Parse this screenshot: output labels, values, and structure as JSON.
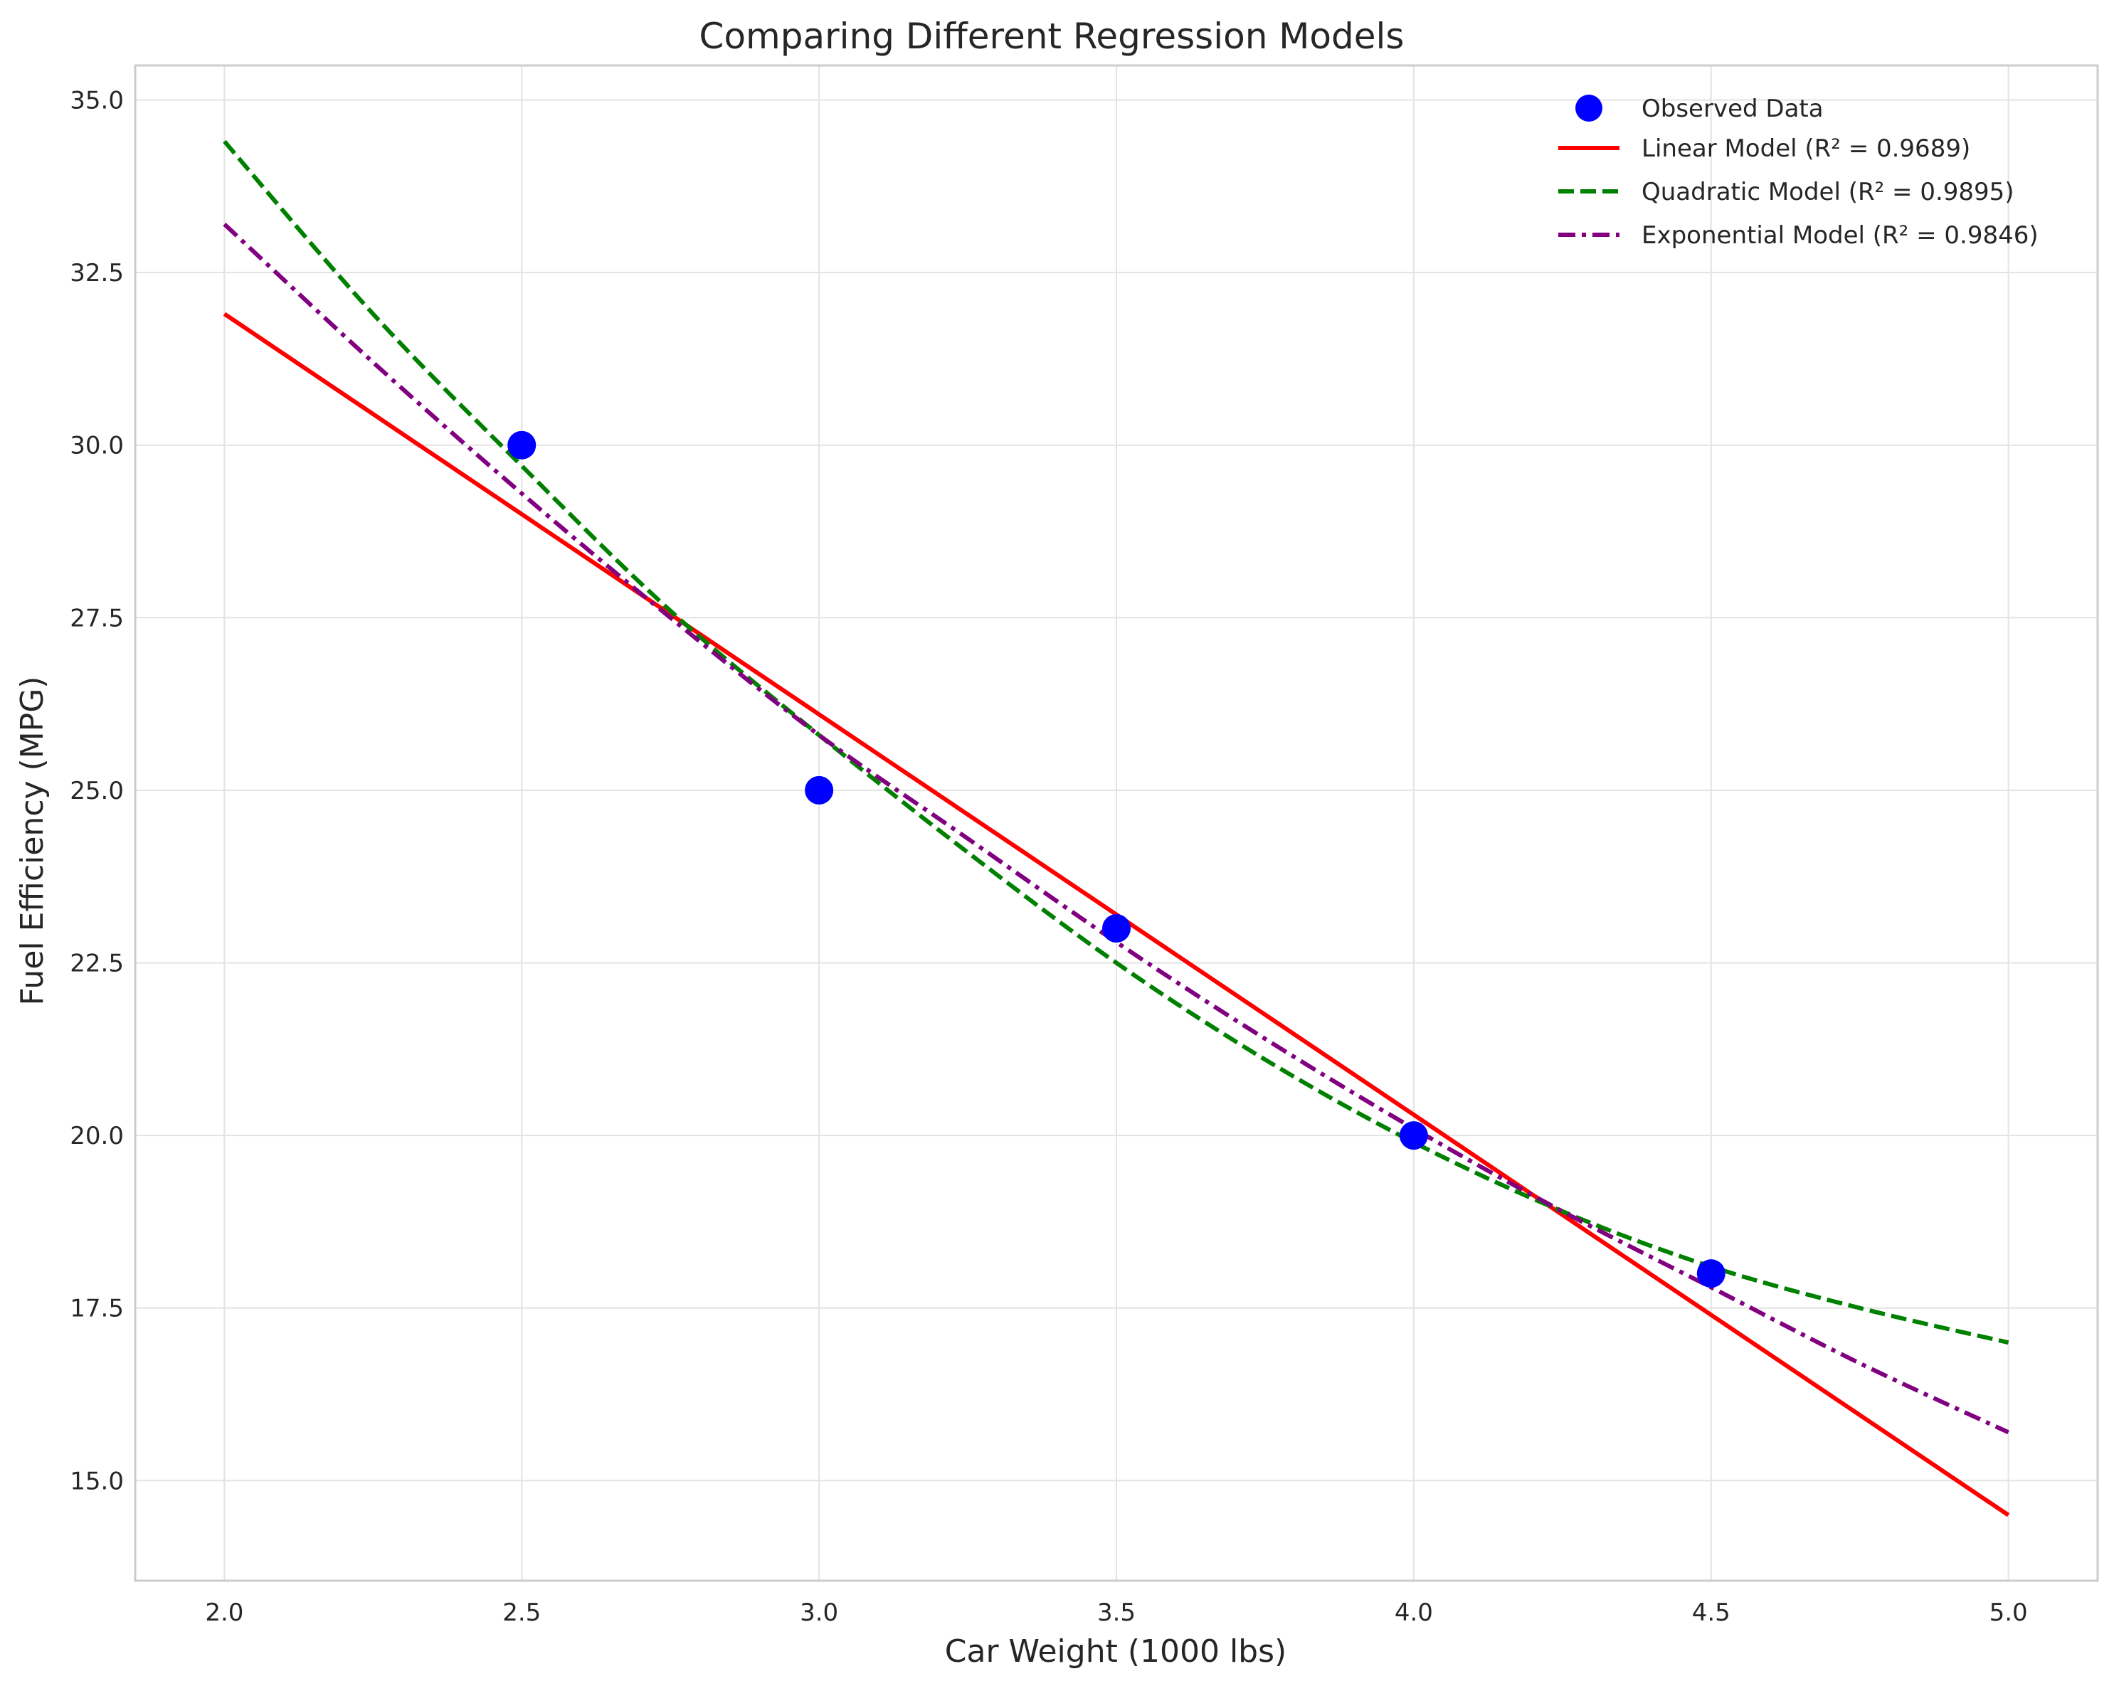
{
  "chart_data": {
    "type": "scatter",
    "title": "Comparing Different Regression Models",
    "xlabel": "Car Weight (1000 lbs)",
    "ylabel": "Fuel Efficiency (MPG)",
    "xlim": [
      1.85,
      5.15
    ],
    "ylim": [
      13.55,
      35.5
    ],
    "xticks": [
      2.0,
      2.5,
      3.0,
      3.5,
      4.0,
      4.5,
      5.0
    ],
    "xtick_labels": [
      "2.0",
      "2.5",
      "3.0",
      "3.5",
      "4.0",
      "4.5",
      "5.0"
    ],
    "yticks": [
      15.0,
      17.5,
      20.0,
      22.5,
      25.0,
      27.5,
      30.0,
      32.5,
      35.0
    ],
    "ytick_labels": [
      "15.0",
      "17.5",
      "20.0",
      "22.5",
      "25.0",
      "27.5",
      "30.0",
      "32.5",
      "35.0"
    ],
    "grid": true,
    "legend_position": "top-right",
    "scatter": {
      "name": "Observed Data",
      "color": "#0000ff",
      "x": [
        2.5,
        3.0,
        3.5,
        4.0,
        4.5
      ],
      "y": [
        30.0,
        25.0,
        23.0,
        20.0,
        18.0
      ]
    },
    "series": [
      {
        "name": "Linear Model (R² = 0.9689)",
        "color": "#ff0000",
        "dash": "solid",
        "x": [
          2.0,
          2.5,
          3.0,
          3.5,
          4.0,
          4.5,
          5.0
        ],
        "y": [
          31.9,
          29.0,
          26.1,
          23.2,
          20.3,
          17.4,
          14.5
        ]
      },
      {
        "name": "Quadratic Model (R² = 0.9895)",
        "color": "#008000",
        "dash": "dashed",
        "x": [
          2.0,
          2.25,
          2.5,
          2.75,
          3.0,
          3.25,
          3.5,
          3.75,
          4.0,
          4.25,
          4.5,
          4.75,
          5.0
        ],
        "y": [
          34.4,
          31.9,
          29.7,
          27.6,
          25.8,
          24.1,
          22.5,
          21.1,
          19.9,
          18.9,
          18.1,
          17.5,
          17.0
        ]
      },
      {
        "name": "Exponential Model (R² = 0.9846)",
        "color": "#800080",
        "dash": "dashdot",
        "x": [
          2.0,
          2.25,
          2.5,
          2.75,
          3.0,
          3.25,
          3.5,
          3.75,
          4.0,
          4.25,
          4.5,
          4.75,
          5.0
        ],
        "y": [
          33.2,
          31.2,
          29.3,
          27.5,
          25.8,
          24.3,
          22.8,
          21.4,
          20.1,
          18.9,
          17.8,
          16.7,
          15.7
        ]
      }
    ]
  }
}
